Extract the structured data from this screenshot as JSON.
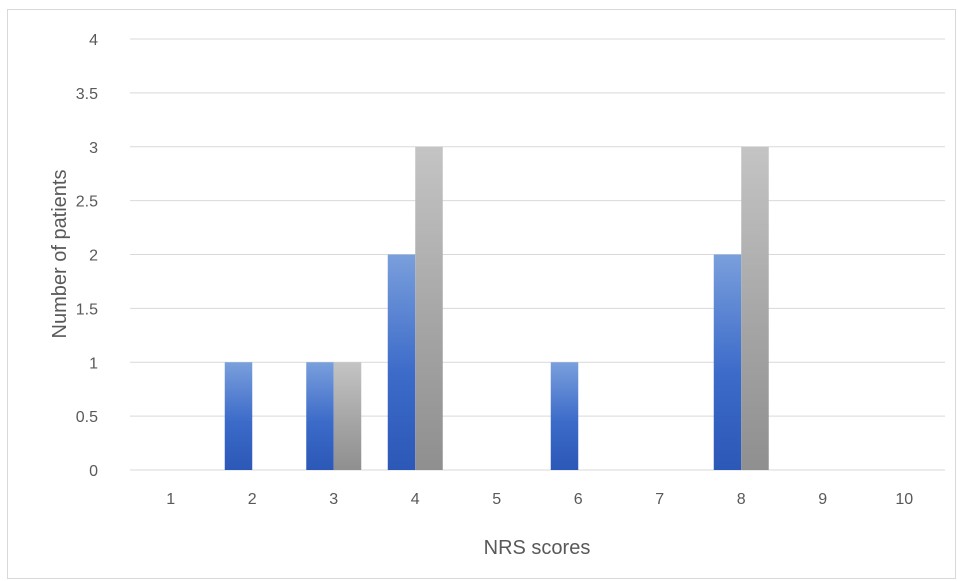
{
  "chart_data": {
    "type": "bar",
    "title": "",
    "xlabel": "NRS scores",
    "ylabel": "Number of patients",
    "categories": [
      "1",
      "2",
      "3",
      "4",
      "5",
      "6",
      "7",
      "8",
      "9",
      "10"
    ],
    "series": [
      {
        "values": [
          0,
          1,
          1,
          2,
          0,
          1,
          0,
          2,
          0,
          0
        ],
        "color": "#4472c4"
      },
      {
        "values": [
          0,
          0,
          1,
          3,
          0,
          0,
          0,
          3,
          0,
          0
        ],
        "color": "#a5a5a5"
      }
    ],
    "ylim": [
      0,
      4
    ],
    "yticks": [
      "0",
      "0.5",
      "1",
      "1.5",
      "2",
      "2.5",
      "3",
      "3.5",
      "4"
    ],
    "grid": true,
    "legend": "none"
  }
}
